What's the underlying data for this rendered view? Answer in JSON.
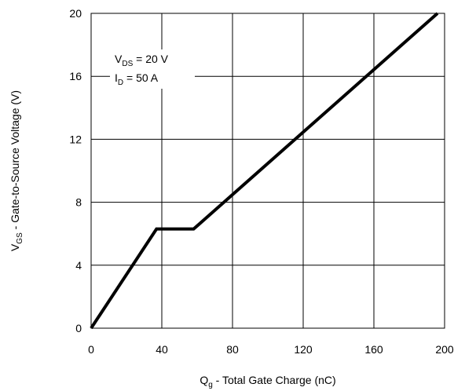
{
  "chart_data": {
    "type": "line",
    "xlabel": {
      "main": "Q",
      "sub": "g",
      "rest": " - Total Gate Charge (nC)"
    },
    "ylabel": {
      "main": "V",
      "sub": "GS",
      "rest": " - Gate-to-Source Voltage (V)"
    },
    "xlim": [
      0,
      200
    ],
    "ylim": [
      0,
      20
    ],
    "x_ticks": [
      0,
      40,
      80,
      120,
      160,
      200
    ],
    "y_ticks": [
      0,
      4,
      8,
      12,
      16,
      20
    ],
    "x_tick_labels": [
      "0",
      "40",
      "80",
      "120",
      "160",
      "200"
    ],
    "y_tick_labels": [
      "0",
      "4",
      "8",
      "12",
      "16",
      "20"
    ],
    "grid": true,
    "series": [
      {
        "x": [
          0,
          37,
          58,
          196
        ],
        "y": [
          0,
          6.3,
          6.3,
          20
        ]
      }
    ],
    "annotations": [
      {
        "main": "V",
        "sub": "DS",
        "rest": " = 20 V"
      },
      {
        "main": "I",
        "sub": "D",
        "rest": " = 50 A"
      }
    ]
  }
}
